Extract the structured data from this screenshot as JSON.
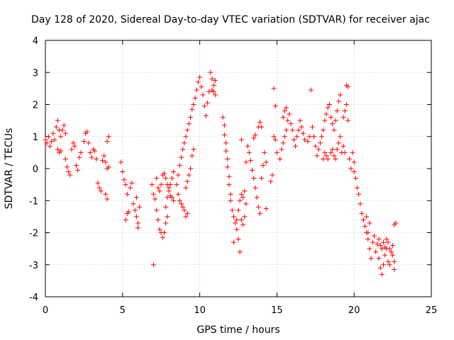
{
  "chart_data": {
    "type": "scatter",
    "title": "Day 128 of 2020, Sidereal Day-to-day VTEC variation (SDTVAR) for receiver ajac",
    "xlabel": "GPS time / hours",
    "ylabel": "SDTVAR / TECUs",
    "xlim": [
      0,
      25
    ],
    "ylim": [
      -4,
      4
    ],
    "xticks": [
      0,
      5,
      10,
      15,
      20,
      25
    ],
    "xtick_labels": [
      "0",
      "5",
      "10",
      "15",
      "20",
      "25"
    ],
    "yticks": [
      -4,
      -3,
      -2,
      -1,
      0,
      1,
      2,
      3,
      4
    ],
    "ytick_labels": [
      "-4",
      "-3",
      "-2",
      "-1",
      "0",
      "1",
      "2",
      "3",
      "4"
    ],
    "grid": true,
    "marker": "+",
    "color": "#ff0000",
    "series": [
      {
        "name": "SDTVAR",
        "points": [
          [
            0.0,
            0.9
          ],
          [
            0.1,
            0.8
          ],
          [
            0.2,
            1.0
          ],
          [
            0.3,
            0.7
          ],
          [
            0.4,
            0.85
          ],
          [
            0.5,
            1.1
          ],
          [
            0.6,
            0.9
          ],
          [
            0.7,
            1.3
          ],
          [
            0.8,
            1.5
          ],
          [
            0.9,
            1.2
          ],
          [
            1.0,
            1.0
          ],
          [
            1.1,
            1.2
          ],
          [
            1.2,
            1.35
          ],
          [
            1.3,
            1.1
          ],
          [
            0.8,
            0.6
          ],
          [
            0.9,
            0.5
          ],
          [
            1.0,
            0.55
          ],
          [
            1.3,
            0.3
          ],
          [
            1.4,
            0.05
          ],
          [
            1.5,
            -0.1
          ],
          [
            1.6,
            -0.2
          ],
          [
            1.7,
            0.6
          ],
          [
            1.8,
            0.8
          ],
          [
            1.9,
            0.7
          ],
          [
            2.0,
            0.1
          ],
          [
            2.1,
            -0.05
          ],
          [
            2.2,
            0.35
          ],
          [
            2.3,
            0.5
          ],
          [
            2.5,
            0.85
          ],
          [
            2.6,
            1.1
          ],
          [
            2.7,
            1.15
          ],
          [
            2.8,
            0.8
          ],
          [
            2.9,
            0.5
          ],
          [
            3.0,
            0.35
          ],
          [
            3.1,
            0.6
          ],
          [
            3.2,
            0.55
          ],
          [
            3.3,
            0.3
          ],
          [
            3.4,
            -0.45
          ],
          [
            3.5,
            -0.6
          ],
          [
            3.6,
            -0.7
          ],
          [
            3.7,
            0.25
          ],
          [
            3.8,
            0.4
          ],
          [
            3.9,
            -0.8
          ],
          [
            4.0,
            -0.95
          ],
          [
            4.0,
            0.85
          ],
          [
            4.1,
            1.0
          ],
          [
            3.9,
            0.2
          ],
          [
            4.0,
            0.0
          ],
          [
            4.1,
            0.05
          ],
          [
            4.9,
            0.2
          ],
          [
            5.0,
            -0.1
          ],
          [
            5.1,
            -0.35
          ],
          [
            5.2,
            -0.5
          ],
          [
            5.3,
            -0.8
          ],
          [
            5.3,
            -1.4
          ],
          [
            5.4,
            -1.35
          ],
          [
            5.5,
            -0.6
          ],
          [
            5.6,
            -0.45
          ],
          [
            5.2,
            -1.6
          ],
          [
            5.7,
            -1.1
          ],
          [
            5.8,
            -1.3
          ],
          [
            5.9,
            -1.5
          ],
          [
            6.0,
            -1.7
          ],
          [
            5.9,
            -0.9
          ],
          [
            6.0,
            -1.85
          ],
          [
            6.1,
            -1.2
          ],
          [
            6.9,
            -0.5
          ],
          [
            7.0,
            -0.8
          ],
          [
            7.1,
            -0.95
          ],
          [
            7.0,
            -3.0
          ],
          [
            7.2,
            -1.3
          ],
          [
            7.3,
            -1.6
          ],
          [
            7.4,
            -1.9
          ],
          [
            7.5,
            -2.0
          ],
          [
            7.6,
            -2.15
          ],
          [
            7.7,
            -2.0
          ],
          [
            7.8,
            -1.7
          ],
          [
            7.9,
            -1.5
          ],
          [
            7.2,
            -0.3
          ],
          [
            7.3,
            -0.6
          ],
          [
            7.4,
            -0.7
          ],
          [
            7.5,
            -0.5
          ],
          [
            7.6,
            -0.2
          ],
          [
            7.7,
            -0.15
          ],
          [
            7.8,
            -0.3
          ],
          [
            7.9,
            -0.5
          ],
          [
            8.0,
            -0.6
          ],
          [
            8.1,
            -0.85
          ],
          [
            8.2,
            -0.9
          ],
          [
            8.3,
            -1.0
          ],
          [
            7.8,
            -1.2
          ],
          [
            7.9,
            -0.9
          ],
          [
            8.0,
            -0.7
          ],
          [
            8.1,
            -0.5
          ],
          [
            8.2,
            -0.3
          ],
          [
            8.3,
            -0.1
          ],
          [
            8.5,
            -0.5
          ],
          [
            8.6,
            -0.2
          ],
          [
            8.7,
            0.1
          ],
          [
            8.8,
            0.35
          ],
          [
            8.9,
            0.6
          ],
          [
            9.0,
            0.8
          ],
          [
            9.1,
            1.0
          ],
          [
            9.2,
            1.2
          ],
          [
            9.3,
            1.4
          ],
          [
            9.4,
            1.6
          ],
          [
            9.5,
            1.85
          ],
          [
            8.6,
            -0.8
          ],
          [
            8.7,
            -1.0
          ],
          [
            8.8,
            -1.1
          ],
          [
            8.9,
            -1.2
          ],
          [
            9.0,
            -1.3
          ],
          [
            9.1,
            -1.5
          ],
          [
            9.2,
            -1.4
          ],
          [
            9.1,
            -0.6
          ],
          [
            9.2,
            -0.4
          ],
          [
            9.3,
            -0.2
          ],
          [
            9.4,
            0.0
          ],
          [
            9.5,
            0.4
          ],
          [
            9.6,
            0.6
          ],
          [
            9.6,
            2.0
          ],
          [
            9.7,
            2.2
          ],
          [
            9.8,
            2.45
          ],
          [
            9.9,
            2.7
          ],
          [
            10.0,
            2.85
          ],
          [
            10.1,
            2.55
          ],
          [
            10.2,
            2.3
          ],
          [
            10.3,
            1.95
          ],
          [
            10.4,
            1.65
          ],
          [
            10.5,
            2.05
          ],
          [
            10.6,
            2.4
          ],
          [
            10.7,
            3.0
          ],
          [
            10.8,
            2.8
          ],
          [
            10.9,
            2.6
          ],
          [
            11.0,
            2.3
          ],
          [
            11.0,
            2.75
          ],
          [
            10.9,
            2.4
          ],
          [
            10.8,
            2.45
          ],
          [
            11.5,
            1.6
          ],
          [
            11.6,
            1.35
          ],
          [
            11.6,
            1.05
          ],
          [
            11.7,
            0.8
          ],
          [
            11.7,
            0.55
          ],
          [
            11.8,
            0.3
          ],
          [
            11.8,
            0.05
          ],
          [
            11.9,
            -0.25
          ],
          [
            11.9,
            -0.5
          ],
          [
            12.0,
            -0.8
          ],
          [
            12.0,
            -1.0
          ],
          [
            12.1,
            -1.3
          ],
          [
            12.2,
            -1.5
          ],
          [
            12.3,
            -1.7
          ],
          [
            12.4,
            -1.9
          ],
          [
            12.5,
            -2.2
          ],
          [
            12.6,
            -2.6
          ],
          [
            12.2,
            -2.3
          ],
          [
            12.4,
            -1.6
          ],
          [
            12.5,
            -1.3
          ],
          [
            12.6,
            -1.0
          ],
          [
            12.7,
            -0.8
          ],
          [
            12.7,
            -1.6
          ],
          [
            12.8,
            -1.75
          ],
          [
            12.9,
            -1.5
          ],
          [
            13.0,
            -1.1
          ],
          [
            12.8,
            -0.9
          ],
          [
            12.9,
            -0.7
          ],
          [
            12.7,
            0.9
          ],
          [
            13.0,
            0.2
          ],
          [
            13.1,
            0.7
          ],
          [
            13.2,
            0.5
          ],
          [
            13.3,
            0.25
          ],
          [
            13.4,
            -0.05
          ],
          [
            13.5,
            -0.3
          ],
          [
            13.6,
            -0.6
          ],
          [
            13.7,
            -0.9
          ],
          [
            13.8,
            -1.2
          ],
          [
            13.9,
            -1.4
          ],
          [
            14.0,
            -0.3
          ],
          [
            14.1,
            0.1
          ],
          [
            14.2,
            0.5
          ],
          [
            13.5,
            0.95
          ],
          [
            13.6,
            1.05
          ],
          [
            13.8,
            1.3
          ],
          [
            13.9,
            1.45
          ],
          [
            14.0,
            1.3
          ],
          [
            14.3,
            -1.25
          ],
          [
            14.3,
            0.2
          ],
          [
            14.6,
            -0.4
          ],
          [
            14.7,
            -0.2
          ],
          [
            14.8,
            2.5
          ],
          [
            14.9,
            1.95
          ],
          [
            14.8,
            1.0
          ],
          [
            14.9,
            0.9
          ],
          [
            15.0,
            0.5
          ],
          [
            15.2,
            0.3
          ],
          [
            15.3,
            0.6
          ],
          [
            15.4,
            0.8
          ],
          [
            15.5,
            1.0
          ],
          [
            15.6,
            1.2
          ],
          [
            15.4,
            1.6
          ],
          [
            15.5,
            1.8
          ],
          [
            15.6,
            1.9
          ],
          [
            15.7,
            1.5
          ],
          [
            15.8,
            1.7
          ],
          [
            15.9,
            1.4
          ],
          [
            16.0,
            1.2
          ],
          [
            16.1,
            0.9
          ],
          [
            16.2,
            0.7
          ],
          [
            16.3,
            1.0
          ],
          [
            16.4,
            1.2
          ],
          [
            16.5,
            1.5
          ],
          [
            16.6,
            1.3
          ],
          [
            16.7,
            1.1
          ],
          [
            16.8,
            0.9
          ],
          [
            17.0,
            0.85
          ],
          [
            17.1,
            1.0
          ],
          [
            17.2,
            2.45
          ],
          [
            17.3,
            1.3
          ],
          [
            17.4,
            1.0
          ],
          [
            17.5,
            0.7
          ],
          [
            17.6,
            0.4
          ],
          [
            17.7,
            0.6
          ],
          [
            17.8,
            0.8
          ],
          [
            17.9,
            1.0
          ],
          [
            18.0,
            1.2
          ],
          [
            18.1,
            1.5
          ],
          [
            18.2,
            1.7
          ],
          [
            18.3,
            1.9
          ],
          [
            18.4,
            2.0
          ],
          [
            18.0,
            0.3
          ],
          [
            18.1,
            0.5
          ],
          [
            18.2,
            0.4
          ],
          [
            18.3,
            0.3
          ],
          [
            18.5,
            1.6
          ],
          [
            18.6,
            1.4
          ],
          [
            18.7,
            1.2
          ],
          [
            18.8,
            1.5
          ],
          [
            18.9,
            1.8
          ],
          [
            19.0,
            2.1
          ],
          [
            19.1,
            2.3
          ],
          [
            18.5,
            0.5
          ],
          [
            18.6,
            0.6
          ],
          [
            18.7,
            0.4
          ],
          [
            18.8,
            0.3
          ],
          [
            18.9,
            0.6
          ],
          [
            19.0,
            0.8
          ],
          [
            19.1,
            1.0
          ],
          [
            19.2,
            0.5
          ],
          [
            19.3,
            0.7
          ],
          [
            19.4,
            0.5
          ],
          [
            19.5,
            2.6
          ],
          [
            19.6,
            2.55
          ],
          [
            19.3,
            1.6
          ],
          [
            19.4,
            1.8
          ],
          [
            19.5,
            2.0
          ],
          [
            19.6,
            1.5
          ],
          [
            19.7,
            0.3
          ],
          [
            19.8,
            0.0
          ],
          [
            19.9,
            0.5
          ],
          [
            20.0,
            0.2
          ],
          [
            20.0,
            -0.1
          ],
          [
            20.1,
            -0.3
          ],
          [
            20.2,
            -0.6
          ],
          [
            20.3,
            -0.8
          ],
          [
            20.4,
            -1.1
          ],
          [
            20.5,
            -1.4
          ],
          [
            20.6,
            -1.6
          ],
          [
            20.7,
            -1.8
          ],
          [
            20.8,
            -2.0
          ],
          [
            20.9,
            -2.2
          ],
          [
            21.0,
            -2.5
          ],
          [
            21.1,
            -2.8
          ],
          [
            20.8,
            -1.5
          ],
          [
            20.9,
            -2.0
          ],
          [
            21.0,
            -1.7
          ],
          [
            21.2,
            -2.3
          ],
          [
            21.3,
            -2.1
          ],
          [
            21.4,
            -2.6
          ],
          [
            21.5,
            -2.35
          ],
          [
            21.6,
            -2.8
          ],
          [
            21.7,
            -3.1
          ],
          [
            21.8,
            -3.3
          ],
          [
            21.9,
            -3.0
          ],
          [
            22.0,
            -2.7
          ],
          [
            22.1,
            -2.5
          ],
          [
            22.2,
            -2.9
          ],
          [
            22.3,
            -3.0
          ],
          [
            22.4,
            -2.6
          ],
          [
            22.5,
            -2.7
          ],
          [
            22.6,
            -3.15
          ],
          [
            21.6,
            -2.2
          ],
          [
            21.7,
            -2.4
          ],
          [
            21.8,
            -2.5
          ],
          [
            21.9,
            -2.3
          ],
          [
            22.0,
            -2.45
          ],
          [
            22.1,
            -2.2
          ],
          [
            22.2,
            -2.3
          ],
          [
            22.3,
            -2.5
          ],
          [
            22.5,
            -2.4
          ],
          [
            22.6,
            -1.75
          ],
          [
            22.7,
            -1.7
          ],
          [
            22.6,
            -2.9
          ]
        ]
      }
    ]
  }
}
